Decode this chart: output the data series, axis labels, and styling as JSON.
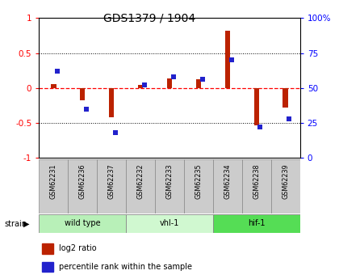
{
  "title": "GDS1379 / 1904",
  "samples": [
    "GSM62231",
    "GSM62236",
    "GSM62237",
    "GSM62232",
    "GSM62233",
    "GSM62235",
    "GSM62234",
    "GSM62238",
    "GSM62239"
  ],
  "log2_ratio": [
    0.05,
    -0.18,
    -0.42,
    0.04,
    0.13,
    0.12,
    0.82,
    -0.54,
    -0.28
  ],
  "percentile": [
    62,
    35,
    18,
    52,
    58,
    56,
    70,
    22,
    28
  ],
  "groups": [
    {
      "label": "wild type",
      "start": 0,
      "end": 3,
      "color": "#b8f0b8"
    },
    {
      "label": "vhl-1",
      "start": 3,
      "end": 6,
      "color": "#d0f8d0"
    },
    {
      "label": "hif-1",
      "start": 6,
      "end": 9,
      "color": "#55dd55"
    }
  ],
  "ylim_left": [
    -1,
    1
  ],
  "ylim_right": [
    0,
    100
  ],
  "yticks_left": [
    -1,
    -0.5,
    0,
    0.5,
    1
  ],
  "yticks_right": [
    0,
    25,
    50,
    75,
    100
  ],
  "bar_color_red": "#bb2200",
  "bar_color_blue": "#2222cc",
  "sample_bg": "#cccccc",
  "bar_width": 0.18
}
